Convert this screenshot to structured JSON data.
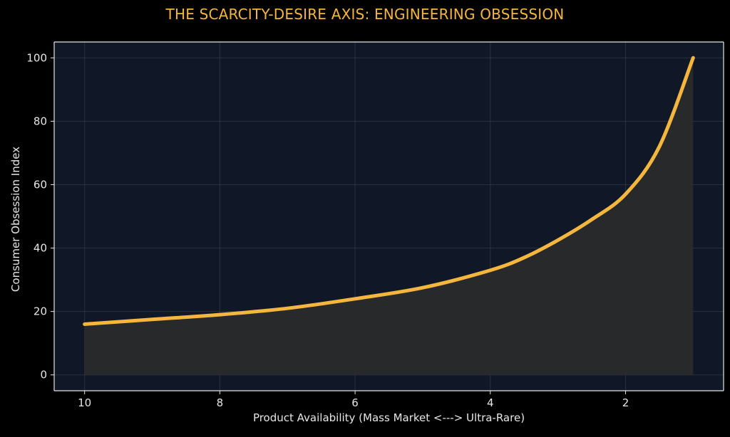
{
  "chart_data": {
    "type": "area",
    "title": "THE SCARCITY-DESIRE AXIS: ENGINEERING OBSESSION",
    "xlabel": "Product Availability (Mass Market <---> Ultra-Rare)",
    "ylabel": "Consumer Obsession Index",
    "xlim": [
      10.45,
      0.55
    ],
    "ylim": [
      -5,
      105
    ],
    "x_reversed": true,
    "x_ticks": [
      10,
      8,
      6,
      4,
      2
    ],
    "y_ticks": [
      0,
      20,
      40,
      60,
      80,
      100
    ],
    "grid": true,
    "series": [
      {
        "x": [
          10,
          9,
          8,
          7,
          6,
          5,
          4,
          3.5,
          3,
          2.5,
          2,
          1.5,
          1
        ],
        "y": [
          16,
          17.5,
          19,
          21,
          24,
          27.5,
          33,
          37,
          42.5,
          49,
          57,
          72,
          100
        ]
      }
    ],
    "colors": {
      "line": "#f4b63d",
      "fill": "#2a2a2a",
      "plot_bg": "#101828",
      "grid": "#3a4150",
      "text": "#e6e6e6"
    }
  }
}
